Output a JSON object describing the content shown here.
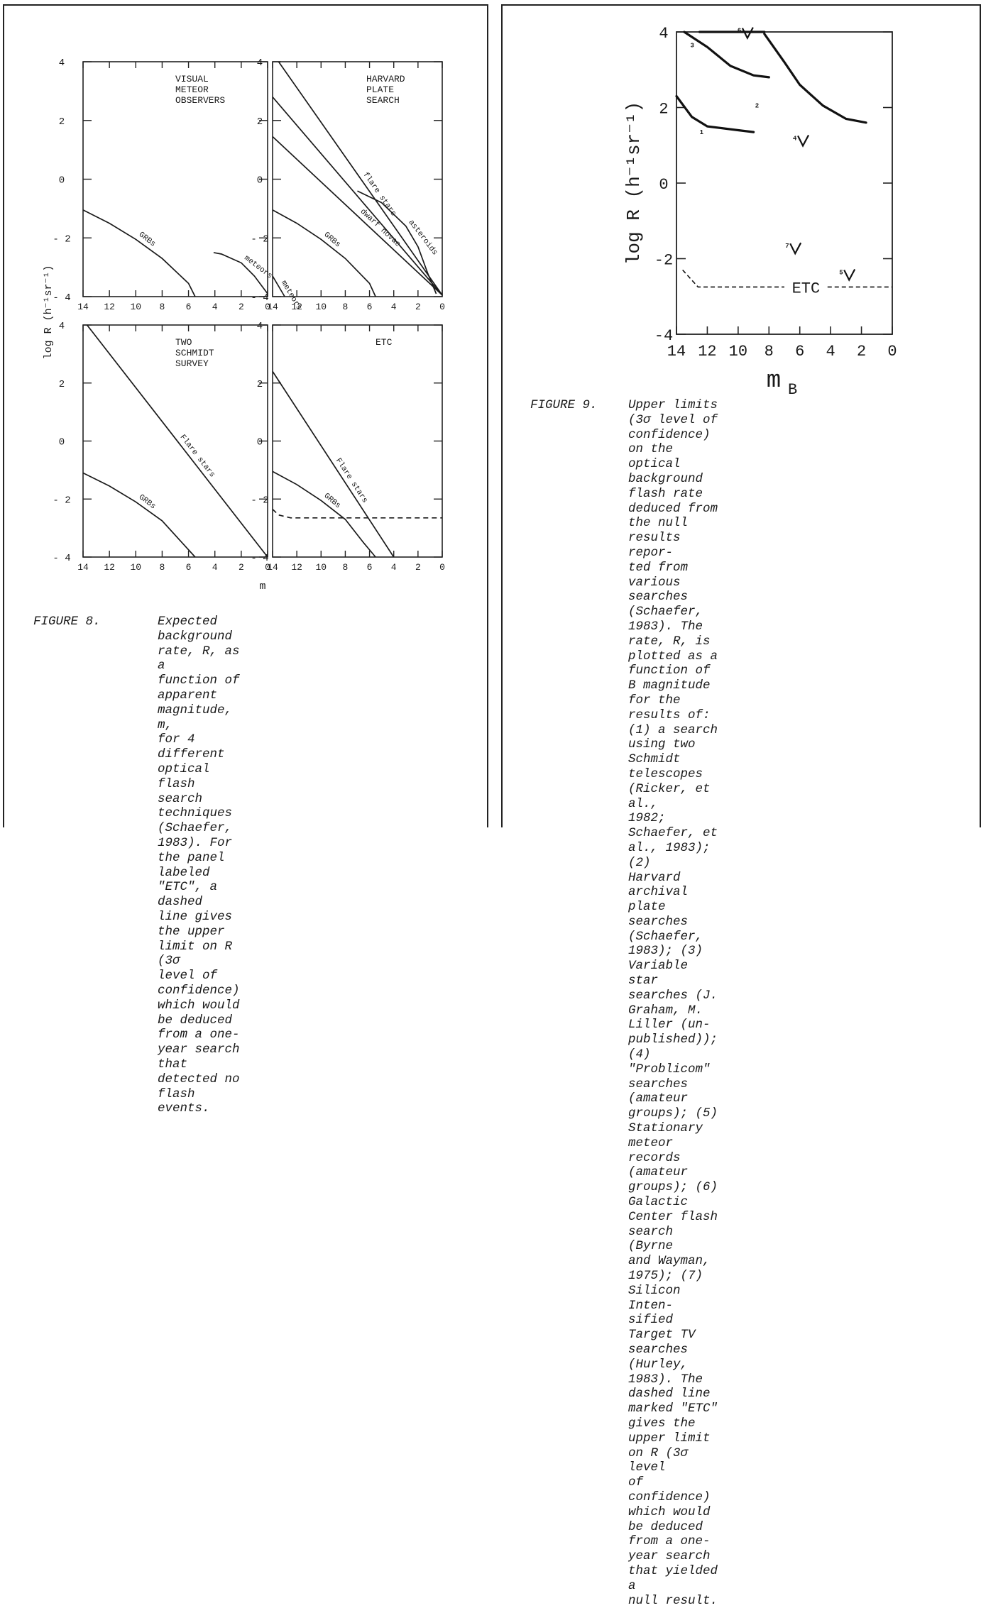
{
  "figure8": {
    "panels": [
      {
        "label": "VISUAL\nMETEOR\nOBSERVERS",
        "curves": [
          {
            "name": "GRBs",
            "points": [
              [
                14,
                -1.05
              ],
              [
                12,
                -1.5
              ],
              [
                10,
                -2.05
              ],
              [
                8,
                -2.7
              ],
              [
                6,
                -3.55
              ],
              [
                5.5,
                -4
              ]
            ]
          },
          {
            "name": "meteors",
            "points": [
              [
                4.1,
                -2.5
              ],
              [
                3.5,
                -2.55
              ],
              [
                2,
                -2.85
              ],
              [
                1,
                -3.3
              ],
              [
                0,
                -3.9
              ]
            ]
          }
        ]
      },
      {
        "label": "HARVARD\nPLATE\nSEARCH",
        "curves": [
          {
            "name": "flare stars",
            "points": [
              [
                13.5,
                4
              ],
              [
                0,
                -3.95
              ]
            ]
          },
          {
            "name": "",
            "points": [
              [
                14,
                2.8
              ],
              [
                0,
                -3.95
              ]
            ]
          },
          {
            "name": "dwarf novae",
            "points": [
              [
                14,
                1.45
              ],
              [
                0,
                -3.95
              ]
            ]
          },
          {
            "name": "asteroids",
            "points": [
              [
                7,
                -0.4
              ],
              [
                5,
                -0.8
              ],
              [
                3,
                -1.6
              ],
              [
                2,
                -2.3
              ],
              [
                1.2,
                -3.2
              ],
              [
                0.5,
                -3.9
              ]
            ]
          },
          {
            "name": "GRBs",
            "points": [
              [
                14,
                -1.05
              ],
              [
                12,
                -1.5
              ],
              [
                10,
                -2.05
              ],
              [
                8,
                -2.7
              ],
              [
                6,
                -3.55
              ],
              [
                5.5,
                -4
              ]
            ]
          },
          {
            "name": "meteors",
            "points": [
              [
                14,
                -3.3
              ],
              [
                13,
                -4
              ]
            ]
          }
        ]
      },
      {
        "label": "TWO\nSCHMIDT\nSURVEY",
        "curves": [
          {
            "name": "Flare stars",
            "points": [
              [
                13.7,
                4
              ],
              [
                0,
                -4
              ]
            ]
          },
          {
            "name": "GRBs",
            "points": [
              [
                14,
                -1.1
              ],
              [
                12,
                -1.55
              ],
              [
                10,
                -2.1
              ],
              [
                8,
                -2.75
              ],
              [
                6.5,
                -3.5
              ],
              [
                5.5,
                -4
              ]
            ]
          }
        ]
      },
      {
        "label": "ETC",
        "curves": [
          {
            "name": "Flare stars",
            "points": [
              [
                14,
                2.4
              ],
              [
                4,
                -4
              ]
            ]
          },
          {
            "name": "GRBs",
            "points": [
              [
                14,
                -1.05
              ],
              [
                12,
                -1.5
              ],
              [
                10,
                -2.05
              ],
              [
                8,
                -2.7
              ],
              [
                6.5,
                -3.5
              ],
              [
                5.5,
                -4
              ]
            ]
          },
          {
            "name": "",
            "dashed": true,
            "points": [
              [
                14,
                -2.35
              ],
              [
                13.5,
                -2.55
              ],
              [
                12.5,
                -2.65
              ],
              [
                0,
                -2.65
              ]
            ]
          }
        ]
      }
    ],
    "y_ticks": [
      "4",
      "2",
      "0",
      "- 2",
      "- 4"
    ],
    "x_ticks": [
      "14",
      "12",
      "10",
      "8",
      "6",
      "4",
      "2",
      "0"
    ],
    "ylabel": "log R (h⁻¹sr⁻¹)",
    "xlabel": "m"
  },
  "figure9": {
    "y_ticks": [
      "4",
      "2",
      "0",
      "-2",
      "-4"
    ],
    "x_ticks": [
      "14",
      "12",
      "10",
      "8",
      "6",
      "4",
      "2",
      "0"
    ],
    "ylabel": "log R (h⁻¹sr⁻¹)",
    "xlabel": "m",
    "xlabel_sub": "B",
    "curve_labels": [
      "1",
      "2",
      "3",
      "4",
      "5",
      "6",
      "7"
    ],
    "etc_label": "ETC",
    "curves": [
      {
        "label": "1",
        "bold": true,
        "points": [
          [
            14,
            2.3
          ],
          [
            13,
            1.75
          ],
          [
            12,
            1.5
          ],
          [
            10,
            1.4
          ],
          [
            9,
            1.35
          ]
        ]
      },
      {
        "label": "2",
        "bold": true,
        "points": [
          [
            8.3,
            3.95
          ],
          [
            7,
            3.2
          ],
          [
            6,
            2.6
          ],
          [
            4.5,
            2.05
          ],
          [
            3,
            1.7
          ],
          [
            1.7,
            1.6
          ]
        ]
      },
      {
        "label": "3",
        "bold": true,
        "points": [
          [
            13.5,
            4
          ],
          [
            12,
            3.6
          ],
          [
            10.5,
            3.1
          ],
          [
            9,
            2.85
          ],
          [
            8,
            2.8
          ]
        ]
      },
      {
        "label": "6",
        "bold": true,
        "points": [
          [
            12.5,
            4
          ],
          [
            8.3,
            4
          ]
        ]
      }
    ],
    "markers": [
      {
        "label": "4",
        "m": 5.8,
        "logR": 1.1
      },
      {
        "label": "5",
        "m": 2.8,
        "logR": -2.45
      },
      {
        "label": "6",
        "m": 9.4,
        "logR": 3.95
      },
      {
        "label": "7",
        "m": 6.3,
        "logR": -1.75
      }
    ],
    "etc_line": {
      "points": [
        [
          13.6,
          -2.3
        ],
        [
          12.6,
          -2.75
        ],
        [
          0,
          -2.75
        ]
      ]
    }
  },
  "captions": {
    "fig8_label": "FIGURE 8.",
    "fig8_text": "Expected background rate, R, as a\nfunction of apparent magnitude, m,\nfor 4 different optical flash search\ntechniques (Schaefer, 1983).  For\nthe panel labeled \"ETC\", a dashed\nline gives the upper limit on R (3σ\nlevel of confidence) which would\nbe deduced from a one-year search\nthat detected no flash events.",
    "fig9_label": "FIGURE 9.",
    "fig9_text": "Upper limits (3σ level of confidence)\non the optical background flash rate\ndeduced from the null results repor-\nted from various searches (Schaefer,\n1983).  The rate, R, is plotted as a\nfunction of B magnitude for the\nresults of: (1) a search using two\nSchmidt telescopes (Ricker, et al.,\n1982; Schaefer, et al., 1983); (2)\nHarvard archival plate searches\n(Schaefer, 1983); (3) Variable star\nsearches (J. Graham, M. Liller (un-\npublished)); (4) \"Problicom\" searches\n(amateur groups); (5) Stationary\nmeteor records (amateur groups); (6)\nGalactic Center flash search (Byrne\nand Wayman, 1975); (7) Silicon Inten-\nsified Target TV searches (Hurley,\n1983).  The dashed line marked \"ETC\"\ngives the upper limit on R (3σ level\nof confidence) which would be deduced\nfrom a one-year search that yielded a\nnull result."
  }
}
